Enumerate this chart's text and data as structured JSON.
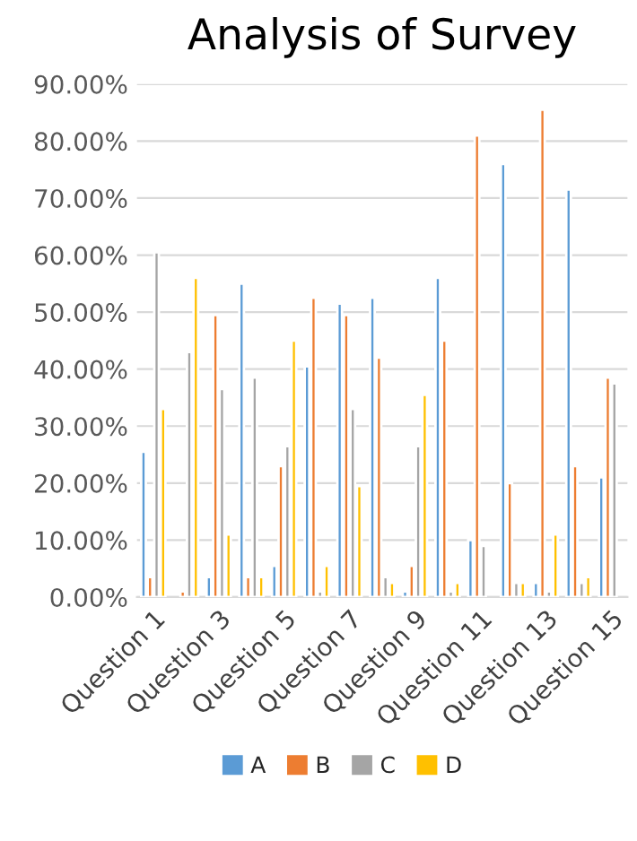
{
  "chart_data": {
    "type": "bar",
    "title": "Analysis of Survey",
    "categories": [
      "Question 1",
      null,
      "Question 3",
      null,
      "Question 5",
      null,
      "Question 7",
      null,
      "Question 9",
      null,
      "Question 11",
      null,
      "Question 13",
      null,
      "Question 15"
    ],
    "series": [
      {
        "name": "A",
        "color": "#5b9bd5",
        "values": [
          25.5,
          null,
          3.5,
          55,
          5.5,
          40.5,
          51.5,
          52.5,
          1,
          56,
          10,
          76,
          2.5,
          71.5,
          21
        ]
      },
      {
        "name": "B",
        "color": "#ed7d31",
        "values": [
          3.5,
          1,
          49.5,
          3.5,
          23,
          52.5,
          49.5,
          42,
          5.5,
          45,
          81,
          20,
          85.5,
          23,
          38.5
        ]
      },
      {
        "name": "C",
        "color": "#a5a5a5",
        "values": [
          60.5,
          43,
          36.5,
          38.5,
          26.5,
          1,
          33,
          3.5,
          26.5,
          1,
          9,
          2.5,
          1,
          2.5,
          37.5
        ]
      },
      {
        "name": "D",
        "color": "#ffc000",
        "values": [
          33,
          56,
          11,
          3.5,
          45,
          5.5,
          19.5,
          2.5,
          35.5,
          2.5,
          null,
          2.5,
          11,
          3.5,
          null
        ]
      }
    ],
    "ylim": [
      0,
      90
    ],
    "yticks": [
      {
        "value": 0,
        "label": "0.00%"
      },
      {
        "value": 10,
        "label": "10.00%"
      },
      {
        "value": 20,
        "label": "20.00%"
      },
      {
        "value": 30,
        "label": "30.00%"
      },
      {
        "value": 40,
        "label": "40.00%"
      },
      {
        "value": 50,
        "label": "50.00%"
      },
      {
        "value": 60,
        "label": "60.00%"
      },
      {
        "value": 70,
        "label": "70.00%"
      },
      {
        "value": 80,
        "label": "80.00%"
      },
      {
        "value": 90,
        "label": "90.00%"
      }
    ],
    "grid": "y",
    "legend": "bottom"
  }
}
